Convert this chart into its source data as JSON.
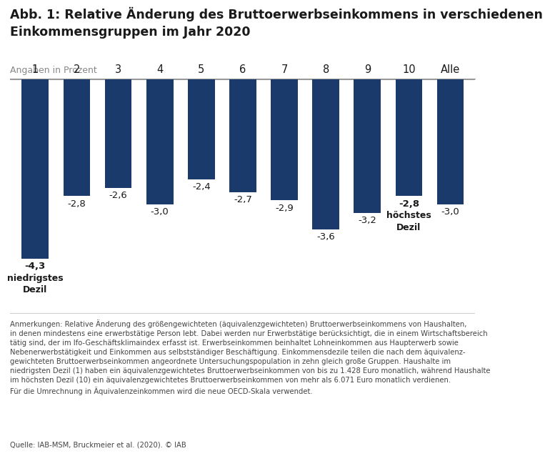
{
  "title": "Abb. 1: Relative Änderung des Bruttoerwerbseinkommens in verschiedenen\nEinkommensgruppen im Jahr 2020",
  "subtitle": "Angaben in Prozent",
  "categories": [
    "1",
    "2",
    "3",
    "4",
    "5",
    "6",
    "7",
    "8",
    "9",
    "10",
    "Alle"
  ],
  "values": [
    -4.3,
    -2.8,
    -2.6,
    -3.0,
    -2.4,
    -2.7,
    -2.9,
    -3.6,
    -3.2,
    -2.8,
    -3.0
  ],
  "bar_color": "#1a3a6b",
  "bar_labels": [
    "-4,3",
    "-2,8",
    "-2,6",
    "-3,0",
    "-2,4",
    "-2,7",
    "-2,9",
    "-3,6",
    "-3,2",
    "-2,8",
    "-3,0"
  ],
  "special_labels": {
    "0": "niedrigstes\nDezil",
    "9": "höchstes\nDezil"
  },
  "ylim": [
    -5.0,
    0.0
  ],
  "note_text": "Anmerkungen: Relative Änderung des größengewichteten (äquivalenzgewichteten) Bruttoerwerbseinkommens von Haushalten,\nin denen mindestens eine erwerbstätige Person lebt. Dabei werden nur Erwerbstätige berücksichtigt, die in einem Wirtschaftsbereich\ntätig sind, der im Ifo-Geschäftsklimaindex erfasst ist. Erwerbseinkommen beinhaltet Lohneinkommen aus Haupterwerb sowie\nNebenerwerbstätigkeit und Einkommen aus selbstständiger Beschäftigung. Einkommensdezile teilen die nach dem äquivalenz-\ngewichteten Bruttoerwerbseinkommen angeordnete Untersuchungspopulation in zehn gleich große Gruppen. Haushalte im\nniedrigsten Dezil (1) haben ein äquivalenzgewichtetes Bruttoerwerbseinkommen von bis zu 1.428 Euro monatlich, während Haushalte\nim höchsten Dezil (10) ein äquivalenzgewichtetes Bruttoerwerbseinkommen von mehr als 6.071 Euro monatlich verdienen.\nFür die Umrechnung in Äquivalenzeinkommen wird die neue OECD-Skala verwendet.",
  "source_text": "Quelle: IAB-MSM, Bruckmeier et al. (2020). © IAB",
  "bg_color": "#ffffff",
  "text_color": "#1a1a1a",
  "bar_text_color": "#1a1a1a",
  "note_color": "#444444",
  "spine_color": "#999999"
}
